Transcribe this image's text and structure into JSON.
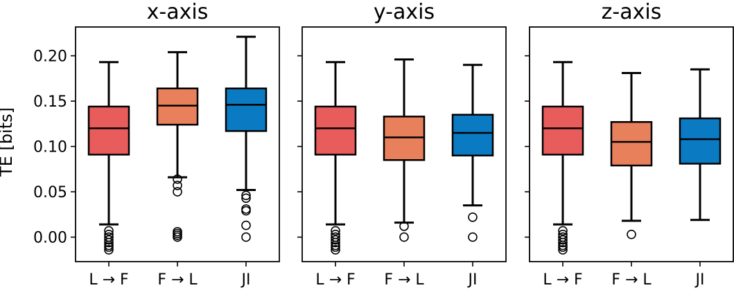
{
  "chart_data": {
    "type": "box",
    "ylabel": "TE [bits]",
    "ylim": [
      -0.025,
      0.228
    ],
    "yticks": [
      "0.00",
      "0.05",
      "0.10",
      "0.15",
      "0.20"
    ],
    "categories": [
      "L → F",
      "F → L",
      "JI"
    ],
    "colors": [
      "#e85c5c",
      "#e8805c",
      "#0a7ac2"
    ],
    "panels": [
      {
        "title": "x-axis",
        "boxes": [
          {
            "whislo": 0.014,
            "q1": 0.091,
            "med": 0.12,
            "q3": 0.144,
            "whishi": 0.193,
            "fliers": [
              0.007,
              0.003,
              0.0,
              -0.003,
              -0.006,
              -0.009,
              -0.011,
              -0.014
            ]
          },
          {
            "whislo": 0.066,
            "q1": 0.124,
            "med": 0.145,
            "q3": 0.164,
            "whishi": 0.204,
            "fliers": [
              0.064,
              0.057,
              0.05,
              0.006,
              0.004,
              0.002,
              0.0
            ]
          },
          {
            "whislo": 0.052,
            "q1": 0.117,
            "med": 0.146,
            "q3": 0.164,
            "whishi": 0.221,
            "fliers": [
              0.046,
              0.043,
              0.031,
              0.029,
              0.013,
              0.0
            ]
          }
        ]
      },
      {
        "title": "y-axis",
        "boxes": [
          {
            "whislo": 0.014,
            "q1": 0.091,
            "med": 0.12,
            "q3": 0.144,
            "whishi": 0.193,
            "fliers": [
              0.007,
              0.003,
              0.0,
              -0.003,
              -0.006,
              -0.009,
              -0.011,
              -0.014
            ]
          },
          {
            "whislo": 0.016,
            "q1": 0.085,
            "med": 0.11,
            "q3": 0.133,
            "whishi": 0.196,
            "fliers": [
              0.012,
              0.0
            ]
          },
          {
            "whislo": 0.035,
            "q1": 0.09,
            "med": 0.115,
            "q3": 0.135,
            "whishi": 0.19,
            "fliers": [
              0.022,
              0.0
            ]
          }
        ]
      },
      {
        "title": "z-axis",
        "boxes": [
          {
            "whislo": 0.014,
            "q1": 0.091,
            "med": 0.12,
            "q3": 0.144,
            "whishi": 0.193,
            "fliers": [
              0.007,
              0.003,
              0.0,
              -0.003,
              -0.006,
              -0.009,
              -0.011,
              -0.014
            ]
          },
          {
            "whislo": 0.018,
            "q1": 0.079,
            "med": 0.105,
            "q3": 0.127,
            "whishi": 0.181,
            "fliers": [
              0.003
            ]
          },
          {
            "whislo": 0.019,
            "q1": 0.081,
            "med": 0.108,
            "q3": 0.131,
            "whishi": 0.185,
            "fliers": []
          }
        ]
      }
    ]
  }
}
